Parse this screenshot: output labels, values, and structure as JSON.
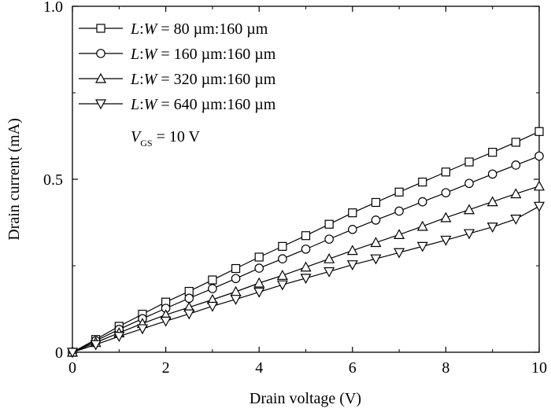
{
  "chart_data": {
    "type": "line",
    "xlabel": "Drain voltage (V)",
    "ylabel": "Drain current (mA)",
    "xlim": [
      0,
      10
    ],
    "ylim": [
      0,
      1.0
    ],
    "x_ticks": [
      "0",
      "2",
      "4",
      "6",
      "8",
      "10"
    ],
    "y_ticks": [
      "0",
      "0.5",
      "1.0"
    ],
    "grid": false,
    "legend_position": "top-left",
    "annotation": {
      "var": "V",
      "sub": "GS",
      "rest": " = 10 V"
    },
    "x": [
      0,
      0.5,
      1,
      1.5,
      2,
      2.5,
      3,
      3.5,
      4,
      4.5,
      5,
      5.5,
      6,
      6.5,
      7,
      7.5,
      8,
      8.5,
      9,
      9.5,
      10
    ],
    "series": [
      {
        "name": "L:W = 80 µm:160 µm",
        "legend": {
          "l": "L",
          "sep": ":",
          "w": "W",
          "rest": " = 80 µm:160 µm"
        },
        "marker": "square",
        "values": [
          0,
          0.037,
          0.075,
          0.11,
          0.145,
          0.176,
          0.209,
          0.242,
          0.275,
          0.306,
          0.337,
          0.37,
          0.403,
          0.433,
          0.463,
          0.492,
          0.521,
          0.55,
          0.578,
          0.607,
          0.638
        ]
      },
      {
        "name": "L:W = 160 µm:160 µm",
        "legend": {
          "l": "L",
          "sep": ":",
          "w": "W",
          "rest": " = 160 µm:160 µm"
        },
        "marker": "circle",
        "values": [
          0,
          0.033,
          0.066,
          0.097,
          0.127,
          0.156,
          0.184,
          0.213,
          0.243,
          0.27,
          0.298,
          0.327,
          0.355,
          0.382,
          0.408,
          0.435,
          0.461,
          0.488,
          0.515,
          0.541,
          0.567
        ]
      },
      {
        "name": "L:W = 320 µm:160 µm",
        "legend": {
          "l": "L",
          "sep": ":",
          "w": "W",
          "rest": " = 320 µm:160 µm"
        },
        "marker": "triangle-up",
        "values": [
          0,
          0.028,
          0.056,
          0.083,
          0.108,
          0.13,
          0.152,
          0.175,
          0.2,
          0.222,
          0.246,
          0.27,
          0.294,
          0.317,
          0.34,
          0.364,
          0.389,
          0.412,
          0.435,
          0.458,
          0.48
        ]
      },
      {
        "name": "L:W = 640 µm:160 µm",
        "legend": {
          "l": "L",
          "sep": ":",
          "w": "W",
          "rest": " = 640 µm:160 µm"
        },
        "marker": "triangle-down",
        "values": [
          0,
          0.022,
          0.046,
          0.068,
          0.09,
          0.111,
          0.133,
          0.153,
          0.174,
          0.195,
          0.214,
          0.233,
          0.253,
          0.27,
          0.288,
          0.306,
          0.324,
          0.343,
          0.362,
          0.385,
          0.422
        ]
      }
    ]
  }
}
